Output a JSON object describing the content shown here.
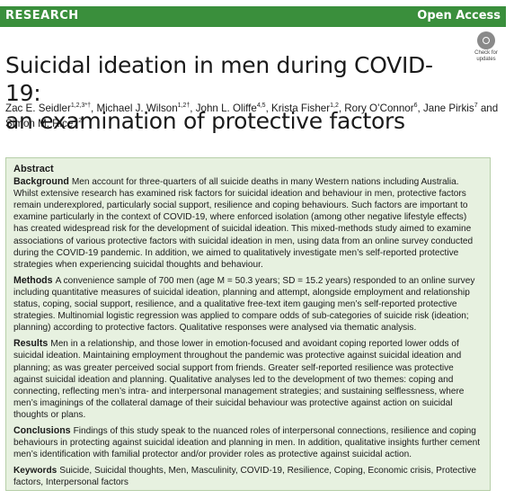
{
  "header": {
    "section": "RESEARCH",
    "access": "Open Access"
  },
  "title_line1": "Suicidal ideation in men during COVID-19:",
  "title_line2": "an examination of protective factors",
  "badge": {
    "line1": "Check for",
    "line2": "updates"
  },
  "authors": [
    {
      "name": "Zac E. Seidler",
      "sup": "1,2,3*†",
      "sep": ", "
    },
    {
      "name": "Michael J. Wilson",
      "sup": "1,2†",
      "sep": ", "
    },
    {
      "name": "John L. Oliffe",
      "sup": "4,5",
      "sep": ", "
    },
    {
      "name": "Krista Fisher",
      "sup": "1,2",
      "sep": ", "
    },
    {
      "name": "Rory O’Connor",
      "sup": "6",
      "sep": ", "
    },
    {
      "name": "Jane Pirkis",
      "sup": "7",
      "sep": " and "
    },
    {
      "name": "Simon M. Rice",
      "sup": "1,2",
      "sep": ""
    }
  ],
  "abstract": {
    "heading": "Abstract",
    "sections": [
      {
        "label": "Background",
        "text": "Men account for three-quarters of all suicide deaths in many Western nations including Australia. Whilst extensive research has examined risk factors for suicidal ideation and behaviour in men, protective factors remain underexplored, particularly social support, resilience and coping behaviours. Such factors are important to examine particularly in the context of COVID-19, where enforced isolation (among other negative lifestyle effects) has created widespread risk for the development of suicidal ideation. This mixed-methods study aimed to examine associations of various protective factors with suicidal ideation in men, using data from an online survey conducted during the COVID-19 pandemic. In addition, we aimed to qualitatively investigate men’s self-reported protective strategies when experiencing suicidal thoughts and behaviour."
      },
      {
        "label": "Methods",
        "text": "A convenience sample of 700 men (age M = 50.3 years; SD = 15.2 years) responded to an online survey including quantitative measures of suicidal ideation, planning and attempt, alongside employment and relationship status, coping, social support, resilience, and a qualitative free-text item gauging men’s self-reported protective strategies. Multinomial logistic regression was applied to compare odds of sub-categories of suicide risk (ideation; planning) according to protective factors. Qualitative responses were analysed via thematic analysis."
      },
      {
        "label": "Results",
        "text": "Men in a relationship, and those lower in emotion-focused and avoidant coping reported lower odds of suicidal ideation. Maintaining employment throughout the pandemic was protective against suicidal ideation and planning; as was greater perceived social support from friends. Greater self-reported resilience was protective against suicidal ideation and planning. Qualitative analyses led to the development of two themes: coping and connecting, reflecting men’s intra- and interpersonal management strategies; and sustaining selflessness, where men’s imaginings of the collateral damage of their suicidal behaviour was protective against action on suicidal thoughts or plans."
      },
      {
        "label": "Conclusions",
        "text": "Findings of this study speak to the nuanced roles of interpersonal connections, resilience and coping behaviours in protecting against suicidal ideation and planning in men. In addition, qualitative insights further cement men’s identification with familial protector and/or provider roles as protective against suicidal action."
      }
    ],
    "keywords_label": "Keywords",
    "keywords": "Suicide, Suicidal thoughts, Men, Masculinity, COVID-19, Resilience, Coping, Economic crisis, Protective factors, Interpersonal factors"
  }
}
